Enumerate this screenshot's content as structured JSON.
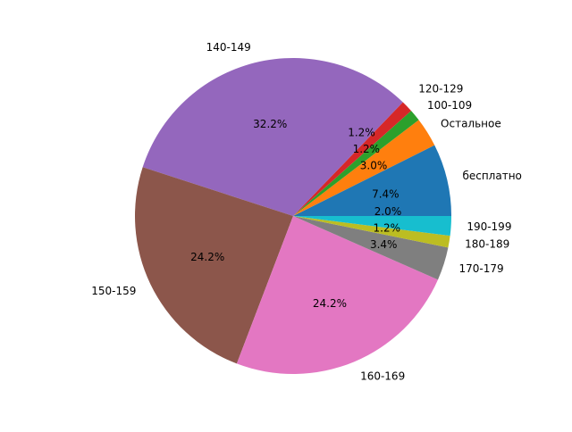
{
  "chart_data": {
    "type": "pie",
    "title": "",
    "start_angle_deg": 0,
    "direction": "counterclockwise",
    "slices": [
      {
        "label": "бесплатно",
        "value": 7.4,
        "pct_label": "7.4%",
        "color": "#1f77b4"
      },
      {
        "label": "Остальное",
        "value": 3.0,
        "pct_label": "3.0%",
        "color": "#ff7f0e"
      },
      {
        "label": "100-109",
        "value": 1.2,
        "pct_label": "1.2%",
        "color": "#2ca02c"
      },
      {
        "label": "120-129",
        "value": 1.2,
        "pct_label": "1.2%",
        "color": "#d62728"
      },
      {
        "label": "140-149",
        "value": 32.2,
        "pct_label": "32.2%",
        "color": "#9467bd"
      },
      {
        "label": "150-159",
        "value": 24.2,
        "pct_label": "24.2%",
        "color": "#8c564b"
      },
      {
        "label": "160-169",
        "value": 24.2,
        "pct_label": "24.2%",
        "color": "#e377c2"
      },
      {
        "label": "170-179",
        "value": 3.4,
        "pct_label": "3.4%",
        "color": "#7f7f7f"
      },
      {
        "label": "180-189",
        "value": 1.2,
        "pct_label": "1.2%",
        "color": "#bcbd22"
      },
      {
        "label": "190-199",
        "value": 2.0,
        "pct_label": "2.0%",
        "color": "#17becf"
      }
    ]
  }
}
